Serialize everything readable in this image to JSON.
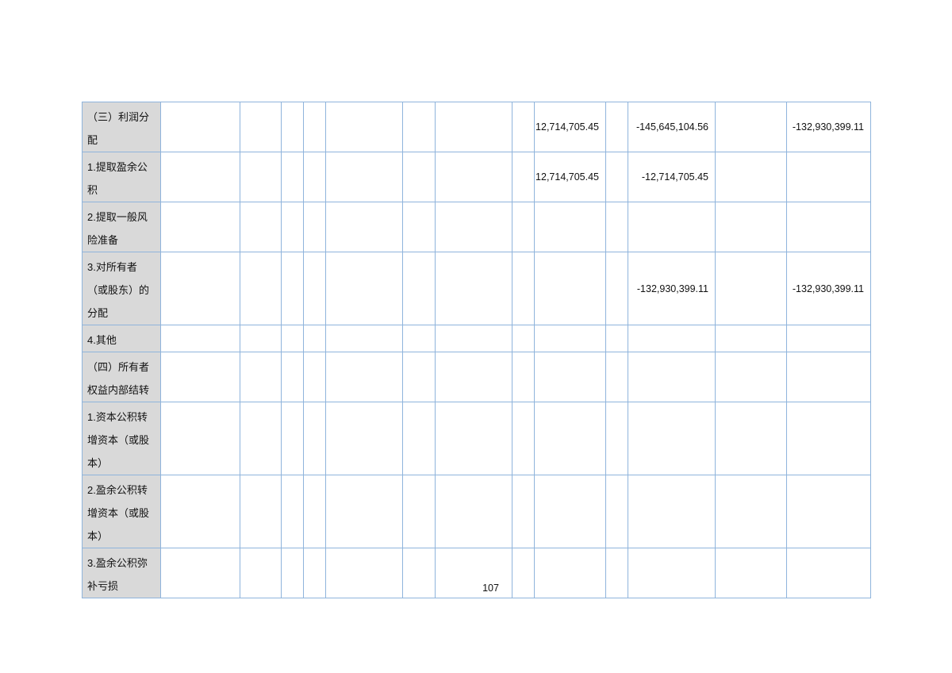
{
  "table": {
    "rows": [
      {
        "label": "（三）利润分配",
        "values": [
          "",
          "",
          "",
          "",
          "",
          "",
          "",
          "",
          "12,714,705.45",
          "",
          "-145,645,104.56",
          "",
          "-132,930,399.11"
        ]
      },
      {
        "label": "1.提取盈余公积",
        "values": [
          "",
          "",
          "",
          "",
          "",
          "",
          "",
          "",
          "12,714,705.45",
          "",
          "-12,714,705.45",
          "",
          ""
        ]
      },
      {
        "label": "2.提取一般风险准备",
        "values": [
          "",
          "",
          "",
          "",
          "",
          "",
          "",
          "",
          "",
          "",
          "",
          "",
          ""
        ]
      },
      {
        "label": "3.对所有者（或股东）的分配",
        "values": [
          "",
          "",
          "",
          "",
          "",
          "",
          "",
          "",
          "",
          "",
          "-132,930,399.11",
          "",
          "-132,930,399.11"
        ]
      },
      {
        "label": "4.其他",
        "values": [
          "",
          "",
          "",
          "",
          "",
          "",
          "",
          "",
          "",
          "",
          "",
          "",
          ""
        ]
      },
      {
        "label": "（四）所有者权益内部结转",
        "values": [
          "",
          "",
          "",
          "",
          "",
          "",
          "",
          "",
          "",
          "",
          "",
          "",
          ""
        ]
      },
      {
        "label": "1.资本公积转增资本（或股本）",
        "values": [
          "",
          "",
          "",
          "",
          "",
          "",
          "",
          "",
          "",
          "",
          "",
          "",
          ""
        ]
      },
      {
        "label": "2.盈余公积转增资本（或股本）",
        "values": [
          "",
          "",
          "",
          "",
          "",
          "",
          "",
          "",
          "",
          "",
          "",
          "",
          ""
        ]
      },
      {
        "label": "3.盈余公积弥补亏损",
        "values": [
          "",
          "",
          "",
          "",
          "",
          "",
          "",
          "",
          "",
          "",
          "",
          "",
          ""
        ]
      }
    ]
  },
  "page_number": "107",
  "colors": {
    "border": "#8fb4dc",
    "label_bg": "#d9d9d9"
  }
}
